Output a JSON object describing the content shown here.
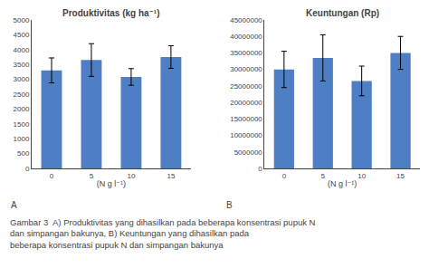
{
  "chart_data": [
    {
      "type": "bar",
      "title": "Produktivitas (kg ha⁻¹)",
      "categories": [
        "0",
        "5",
        "10",
        "15"
      ],
      "values": [
        3300,
        3650,
        3080,
        3750
      ],
      "errors": [
        420,
        550,
        280,
        380
      ],
      "color": "#4e7fc4",
      "ylim": [
        0,
        5000
      ],
      "yticks": [
        0,
        500,
        1000,
        1500,
        2000,
        2500,
        3000,
        3500,
        4000,
        4500,
        5000
      ],
      "x_label": "(N g l⁻¹)",
      "label": "A",
      "grid": false
    },
    {
      "type": "bar",
      "title": "Keuntungan (Rp)",
      "categories": [
        "0",
        "5",
        "10",
        "15"
      ],
      "values": [
        30000000,
        33500000,
        26500000,
        35000000
      ],
      "errors": [
        5500000,
        7000000,
        4500000,
        5000000
      ],
      "color": "#4e7fc4",
      "ylim": [
        0,
        45000000
      ],
      "yticks": [
        0,
        5000000,
        10000000,
        15000000,
        20000000,
        25000000,
        30000000,
        35000000,
        40000000,
        45000000
      ],
      "x_label": "(N g l⁻¹)",
      "label": "B",
      "grid": false
    }
  ],
  "caption": [
    "Gambar 3  A) Produktivitas yang dihasilkan pada beberapa konsentrasi pupuk N",
    "dan simpangan bakunya, B) Keuntungan yang dihasilkan pada",
    "beberapa konsentrasi pupuk N dan simpangan bakunya"
  ]
}
